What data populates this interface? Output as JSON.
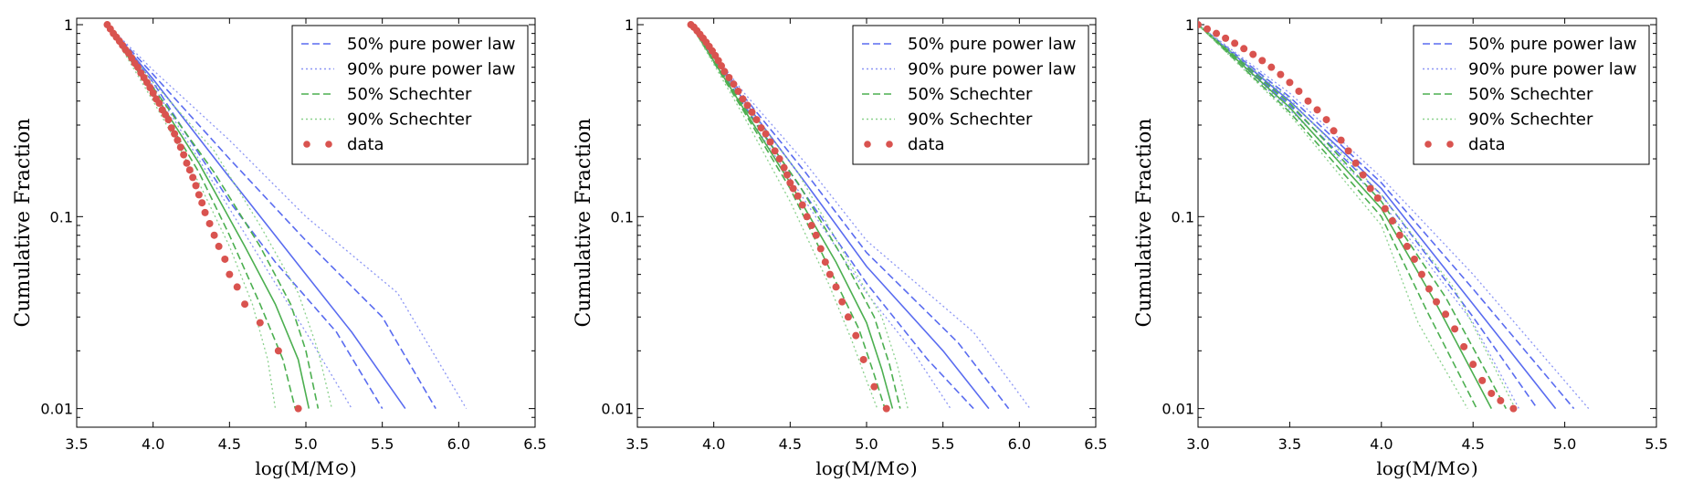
{
  "chart_data": [
    {
      "type": "line",
      "xlabel": "log(M/M⊙)",
      "ylabel": "Cumulative Fraction",
      "xlim": [
        3.5,
        6.5
      ],
      "ylim": [
        0.008,
        1.08
      ],
      "yscale": "log",
      "xticks": [
        3.5,
        4.0,
        4.5,
        5.0,
        5.5,
        6.0,
        6.5
      ],
      "xtick_labels": [
        "3.5",
        "4.0",
        "4.5",
        "5.0",
        "5.5",
        "6.0",
        "6.5"
      ],
      "yticks": [
        1,
        0.1,
        0.01
      ],
      "ytick_labels": [
        "1",
        "0.1",
        "0.01"
      ],
      "legend": {
        "position": "upper right",
        "entries": [
          "50% pure power law",
          "90% pure power law",
          "50% Schechter",
          "90% Schechter",
          "data"
        ]
      },
      "series": [
        {
          "name": "50% pure power law",
          "role": "median",
          "color": "#5a6cf0",
          "style": "solid",
          "x": [
            3.7,
            4.0,
            4.5,
            5.0,
            5.3,
            5.65
          ],
          "y": [
            1.0,
            0.52,
            0.16,
            0.05,
            0.025,
            0.01
          ]
        },
        {
          "name": "50% pure power law",
          "role": "lower",
          "color": "#5a6cf0",
          "style": "dashed",
          "x": [
            3.7,
            4.0,
            4.5,
            4.8,
            5.2,
            5.5
          ],
          "y": [
            1.0,
            0.5,
            0.12,
            0.058,
            0.025,
            0.01
          ]
        },
        {
          "name": "50% pure power law",
          "role": "upper",
          "color": "#5a6cf0",
          "style": "dashed",
          "x": [
            3.7,
            4.0,
            4.5,
            5.0,
            5.5,
            5.85
          ],
          "y": [
            1.0,
            0.55,
            0.2,
            0.075,
            0.03,
            0.01
          ]
        },
        {
          "name": "90% pure power law",
          "role": "lower",
          "color": "#8c96f5",
          "style": "dotted",
          "x": [
            3.7,
            4.0,
            4.5,
            4.8,
            5.0,
            5.3
          ],
          "y": [
            1.0,
            0.48,
            0.11,
            0.045,
            0.025,
            0.01
          ]
        },
        {
          "name": "90% pure power law",
          "role": "upper",
          "color": "#8c96f5",
          "style": "dotted",
          "x": [
            3.7,
            4.0,
            4.5,
            5.0,
            5.6,
            6.05
          ],
          "y": [
            1.0,
            0.58,
            0.25,
            0.1,
            0.04,
            0.01
          ]
        },
        {
          "name": "50% Schechter",
          "role": "median",
          "color": "#4caf50",
          "style": "solid",
          "x": [
            3.7,
            4.0,
            4.3,
            4.6,
            4.8,
            4.95,
            5.02
          ],
          "y": [
            1.0,
            0.45,
            0.19,
            0.07,
            0.035,
            0.018,
            0.01
          ]
        },
        {
          "name": "50% Schechter",
          "role": "lower",
          "color": "#4caf50",
          "style": "dashed",
          "x": [
            3.7,
            4.0,
            4.3,
            4.5,
            4.7,
            4.85,
            4.93
          ],
          "y": [
            1.0,
            0.43,
            0.17,
            0.08,
            0.035,
            0.018,
            0.01
          ]
        },
        {
          "name": "50% Schechter",
          "role": "upper",
          "color": "#4caf50",
          "style": "dashed",
          "x": [
            3.7,
            4.0,
            4.4,
            4.7,
            4.9,
            5.0,
            5.08
          ],
          "y": [
            1.0,
            0.47,
            0.17,
            0.07,
            0.035,
            0.02,
            0.01
          ]
        },
        {
          "name": "90% Schechter",
          "role": "lower",
          "color": "#8bd18d",
          "style": "dotted",
          "x": [
            3.7,
            4.0,
            4.3,
            4.5,
            4.65,
            4.75,
            4.8
          ],
          "y": [
            1.0,
            0.4,
            0.15,
            0.07,
            0.035,
            0.018,
            0.01
          ]
        },
        {
          "name": "90% Schechter",
          "role": "upper",
          "color": "#8bd18d",
          "style": "dotted",
          "x": [
            3.7,
            4.0,
            4.4,
            4.7,
            4.95,
            5.08,
            5.17
          ],
          "y": [
            1.0,
            0.5,
            0.22,
            0.09,
            0.04,
            0.02,
            0.01
          ]
        },
        {
          "name": "data",
          "color": "#d9534f",
          "style": "points",
          "x": [
            3.7,
            3.72,
            3.74,
            3.76,
            3.78,
            3.8,
            3.82,
            3.84,
            3.86,
            3.88,
            3.9,
            3.92,
            3.94,
            3.96,
            3.98,
            4.0,
            4.02,
            4.04,
            4.06,
            4.08,
            4.1,
            4.12,
            4.14,
            4.16,
            4.18,
            4.2,
            4.22,
            4.24,
            4.26,
            4.28,
            4.3,
            4.32,
            4.34,
            4.37,
            4.4,
            4.43,
            4.47,
            4.5,
            4.55,
            4.6,
            4.7,
            4.82,
            4.95
          ],
          "y": [
            1.0,
            0.95,
            0.9,
            0.86,
            0.82,
            0.78,
            0.74,
            0.71,
            0.67,
            0.63,
            0.6,
            0.56,
            0.53,
            0.5,
            0.47,
            0.44,
            0.41,
            0.39,
            0.36,
            0.34,
            0.32,
            0.29,
            0.27,
            0.25,
            0.23,
            0.21,
            0.19,
            0.175,
            0.16,
            0.145,
            0.13,
            0.118,
            0.105,
            0.092,
            0.08,
            0.07,
            0.06,
            0.05,
            0.043,
            0.035,
            0.028,
            0.02,
            0.01
          ]
        }
      ]
    },
    {
      "type": "line",
      "xlabel": "log(M/M⊙)",
      "ylabel": "Cumulative Fraction",
      "xlim": [
        3.5,
        6.5
      ],
      "ylim": [
        0.008,
        1.08
      ],
      "yscale": "log",
      "xticks": [
        3.5,
        4.0,
        4.5,
        5.0,
        5.5,
        6.0,
        6.5
      ],
      "xtick_labels": [
        "3.5",
        "4.0",
        "4.5",
        "5.0",
        "5.5",
        "6.0",
        "6.5"
      ],
      "yticks": [
        1,
        0.1,
        0.01
      ],
      "ytick_labels": [
        "1",
        "0.1",
        "0.01"
      ],
      "legend": {
        "position": "upper right",
        "entries": [
          "50% pure power law",
          "90% pure power law",
          "50% Schechter",
          "90% Schechter",
          "data"
        ]
      },
      "series": [
        {
          "name": "50% pure power law",
          "role": "median",
          "color": "#5a6cf0",
          "style": "solid",
          "x": [
            3.85,
            4.2,
            4.6,
            5.0,
            5.5,
            5.8
          ],
          "y": [
            1.0,
            0.4,
            0.15,
            0.055,
            0.02,
            0.01
          ]
        },
        {
          "name": "50% pure power law",
          "role": "lower",
          "color": "#5a6cf0",
          "style": "dashed",
          "x": [
            3.85,
            4.2,
            4.6,
            5.0,
            5.4,
            5.7
          ],
          "y": [
            1.0,
            0.38,
            0.13,
            0.045,
            0.018,
            0.01
          ]
        },
        {
          "name": "50% pure power law",
          "role": "upper",
          "color": "#5a6cf0",
          "style": "dashed",
          "x": [
            3.85,
            4.2,
            4.6,
            5.0,
            5.6,
            5.93
          ],
          "y": [
            1.0,
            0.42,
            0.17,
            0.065,
            0.022,
            0.01
          ]
        },
        {
          "name": "90% pure power law",
          "role": "lower",
          "color": "#8c96f5",
          "style": "dotted",
          "x": [
            3.85,
            4.2,
            4.6,
            5.0,
            5.3,
            5.55
          ],
          "y": [
            1.0,
            0.36,
            0.12,
            0.04,
            0.02,
            0.01
          ]
        },
        {
          "name": "90% pure power law",
          "role": "upper",
          "color": "#8c96f5",
          "style": "dotted",
          "x": [
            3.85,
            4.2,
            4.6,
            5.0,
            5.7,
            6.07
          ],
          "y": [
            1.0,
            0.44,
            0.19,
            0.075,
            0.025,
            0.01
          ]
        },
        {
          "name": "50% Schechter",
          "role": "median",
          "color": "#4caf50",
          "style": "solid",
          "x": [
            3.85,
            4.2,
            4.5,
            4.8,
            5.0,
            5.1,
            5.17
          ],
          "y": [
            1.0,
            0.36,
            0.15,
            0.058,
            0.028,
            0.016,
            0.01
          ]
        },
        {
          "name": "50% Schechter",
          "role": "lower",
          "color": "#4caf50",
          "style": "dashed",
          "x": [
            3.85,
            4.2,
            4.5,
            4.75,
            4.95,
            5.05,
            5.12
          ],
          "y": [
            1.0,
            0.35,
            0.14,
            0.055,
            0.026,
            0.015,
            0.01
          ]
        },
        {
          "name": "50% Schechter",
          "role": "upper",
          "color": "#4caf50",
          "style": "dashed",
          "x": [
            3.85,
            4.2,
            4.55,
            4.85,
            5.05,
            5.15,
            5.22
          ],
          "y": [
            1.0,
            0.37,
            0.15,
            0.06,
            0.03,
            0.017,
            0.01
          ]
        },
        {
          "name": "90% Schechter",
          "role": "lower",
          "color": "#8bd18d",
          "style": "dotted",
          "x": [
            3.85,
            4.2,
            4.5,
            4.75,
            4.9,
            5.0,
            5.07
          ],
          "y": [
            1.0,
            0.33,
            0.12,
            0.045,
            0.023,
            0.014,
            0.01
          ]
        },
        {
          "name": "90% Schechter",
          "role": "upper",
          "color": "#8bd18d",
          "style": "dotted",
          "x": [
            3.85,
            4.2,
            4.55,
            4.85,
            5.1,
            5.2,
            5.27
          ],
          "y": [
            1.0,
            0.39,
            0.17,
            0.065,
            0.03,
            0.017,
            0.01
          ]
        },
        {
          "name": "data",
          "color": "#d9534f",
          "style": "points",
          "x": [
            3.85,
            3.87,
            3.89,
            3.91,
            3.93,
            3.95,
            3.97,
            3.99,
            4.01,
            4.03,
            4.05,
            4.07,
            4.1,
            4.13,
            4.16,
            4.19,
            4.22,
            4.25,
            4.28,
            4.31,
            4.34,
            4.37,
            4.4,
            4.43,
            4.46,
            4.48,
            4.5,
            4.52,
            4.55,
            4.58,
            4.61,
            4.64,
            4.67,
            4.7,
            4.73,
            4.76,
            4.8,
            4.84,
            4.88,
            4.93,
            4.98,
            5.05,
            5.13
          ],
          "y": [
            1.0,
            0.97,
            0.93,
            0.89,
            0.85,
            0.81,
            0.77,
            0.73,
            0.69,
            0.65,
            0.61,
            0.57,
            0.53,
            0.49,
            0.45,
            0.41,
            0.38,
            0.35,
            0.32,
            0.29,
            0.27,
            0.245,
            0.22,
            0.2,
            0.18,
            0.165,
            0.15,
            0.14,
            0.128,
            0.115,
            0.1,
            0.09,
            0.08,
            0.068,
            0.058,
            0.05,
            0.043,
            0.036,
            0.03,
            0.024,
            0.018,
            0.013,
            0.01
          ]
        }
      ]
    },
    {
      "type": "line",
      "xlabel": "log(M/M⊙)",
      "ylabel": "Cumulative Fraction",
      "xlim": [
        3.0,
        5.5
      ],
      "ylim": [
        0.008,
        1.08
      ],
      "yscale": "log",
      "xticks": [
        3.0,
        3.5,
        4.0,
        4.5,
        5.0,
        5.5
      ],
      "xtick_labels": [
        "3.0",
        "3.5",
        "4.0",
        "4.5",
        "5.0",
        "5.5"
      ],
      "yticks": [
        1,
        0.1,
        0.01
      ],
      "ytick_labels": [
        "1",
        "0.1",
        "0.01"
      ],
      "legend": {
        "position": "upper right",
        "entries": [
          "50% pure power law",
          "90% pure power law",
          "50% Schechter",
          "90% Schechter",
          "data"
        ]
      },
      "series": [
        {
          "name": "50% pure power law",
          "role": "median",
          "color": "#5a6cf0",
          "style": "solid",
          "x": [
            3.0,
            3.5,
            4.0,
            4.5,
            4.95
          ],
          "y": [
            1.0,
            0.4,
            0.14,
            0.035,
            0.01
          ]
        },
        {
          "name": "50% pure power law",
          "role": "lower",
          "color": "#5a6cf0",
          "style": "dashed",
          "x": [
            3.0,
            3.5,
            4.0,
            4.5,
            4.85
          ],
          "y": [
            1.0,
            0.38,
            0.13,
            0.03,
            0.01
          ]
        },
        {
          "name": "50% pure power law",
          "role": "upper",
          "color": "#5a6cf0",
          "style": "dashed",
          "x": [
            3.0,
            3.5,
            4.0,
            4.5,
            5.05
          ],
          "y": [
            1.0,
            0.42,
            0.15,
            0.042,
            0.01
          ]
        },
        {
          "name": "90% pure power law",
          "role": "lower",
          "color": "#8c96f5",
          "style": "dotted",
          "x": [
            3.0,
            3.5,
            4.0,
            4.5,
            4.75
          ],
          "y": [
            1.0,
            0.36,
            0.12,
            0.028,
            0.01
          ]
        },
        {
          "name": "90% pure power law",
          "role": "upper",
          "color": "#8c96f5",
          "style": "dotted",
          "x": [
            3.0,
            3.5,
            4.0,
            4.5,
            5.13
          ],
          "y": [
            1.0,
            0.44,
            0.16,
            0.05,
            0.01
          ]
        },
        {
          "name": "50% Schechter",
          "role": "median",
          "color": "#4caf50",
          "style": "solid",
          "x": [
            3.0,
            3.5,
            4.0,
            4.3,
            4.6
          ],
          "y": [
            1.0,
            0.37,
            0.11,
            0.035,
            0.01
          ]
        },
        {
          "name": "50% Schechter",
          "role": "lower",
          "color": "#4caf50",
          "style": "dashed",
          "x": [
            3.0,
            3.5,
            4.0,
            4.25,
            4.52
          ],
          "y": [
            1.0,
            0.35,
            0.1,
            0.032,
            0.01
          ]
        },
        {
          "name": "50% Schechter",
          "role": "upper",
          "color": "#4caf50",
          "style": "dashed",
          "x": [
            3.0,
            3.5,
            4.0,
            4.35,
            4.68
          ],
          "y": [
            1.0,
            0.39,
            0.12,
            0.038,
            0.01
          ]
        },
        {
          "name": "90% Schechter",
          "role": "lower",
          "color": "#8bd18d",
          "style": "dotted",
          "x": [
            3.0,
            3.5,
            4.0,
            4.2,
            4.47
          ],
          "y": [
            1.0,
            0.34,
            0.09,
            0.028,
            0.01
          ]
        },
        {
          "name": "90% Schechter",
          "role": "upper",
          "color": "#8bd18d",
          "style": "dotted",
          "x": [
            3.0,
            3.5,
            4.0,
            4.4,
            4.73
          ],
          "y": [
            1.0,
            0.41,
            0.13,
            0.042,
            0.01
          ]
        },
        {
          "name": "data",
          "color": "#d9534f",
          "style": "points",
          "x": [
            3.0,
            3.05,
            3.1,
            3.15,
            3.2,
            3.25,
            3.3,
            3.35,
            3.4,
            3.45,
            3.5,
            3.55,
            3.6,
            3.65,
            3.7,
            3.74,
            3.78,
            3.82,
            3.86,
            3.9,
            3.94,
            3.98,
            4.02,
            4.06,
            4.1,
            4.14,
            4.18,
            4.22,
            4.26,
            4.3,
            4.35,
            4.4,
            4.45,
            4.5,
            4.55,
            4.6,
            4.65,
            4.72
          ],
          "y": [
            1.0,
            0.95,
            0.9,
            0.85,
            0.8,
            0.75,
            0.7,
            0.65,
            0.6,
            0.55,
            0.5,
            0.45,
            0.4,
            0.36,
            0.32,
            0.28,
            0.25,
            0.22,
            0.19,
            0.165,
            0.14,
            0.125,
            0.11,
            0.095,
            0.08,
            0.07,
            0.06,
            0.05,
            0.042,
            0.036,
            0.031,
            0.026,
            0.021,
            0.017,
            0.014,
            0.012,
            0.011,
            0.01
          ]
        }
      ]
    }
  ]
}
